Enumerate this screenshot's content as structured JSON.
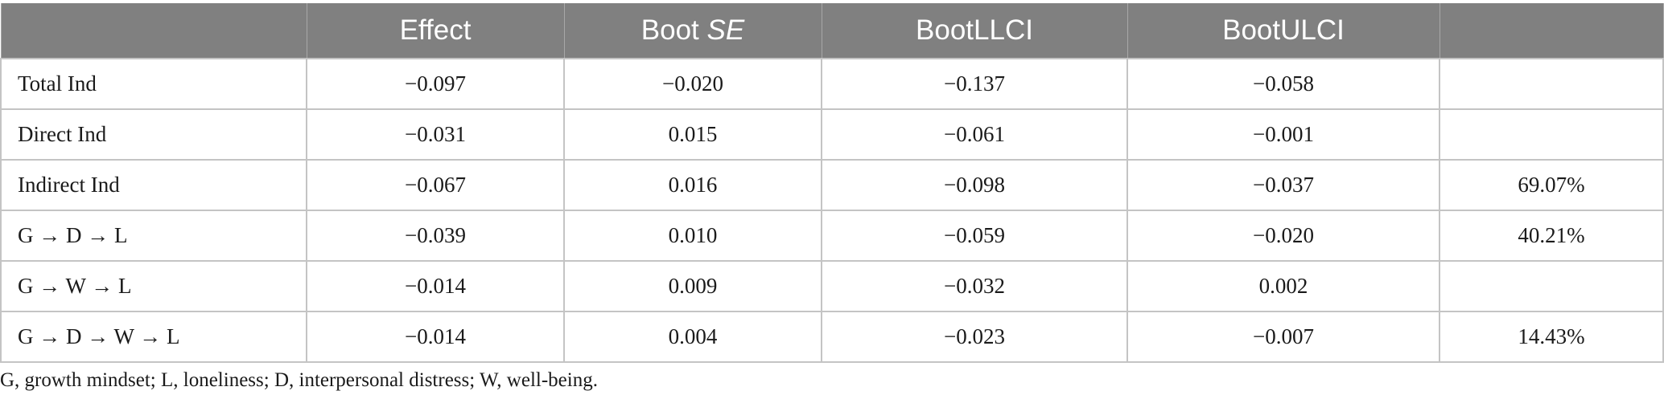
{
  "table": {
    "headers": [
      "",
      "Effect",
      "Boot",
      "SE",
      "BootLLCI",
      "BootULCI",
      ""
    ],
    "rows": [
      {
        "label": "Total Ind",
        "effect": "−0.097",
        "boot_se": "−0.020",
        "bootllci": "−0.137",
        "bootulci": "−0.058",
        "extra": ""
      },
      {
        "label": "Direct Ind",
        "effect": "−0.031",
        "boot_se": "0.015",
        "bootllci": "−0.061",
        "bootulci": "−0.001",
        "extra": ""
      },
      {
        "label": "Indirect Ind",
        "effect": "−0.067",
        "boot_se": "0.016",
        "bootllci": "−0.098",
        "bootulci": "−0.037",
        "extra": "69.07%"
      },
      {
        "label": "G → D → L",
        "effect": "−0.039",
        "boot_se": "0.010",
        "bootllci": "−0.059",
        "bootulci": "−0.020",
        "extra": "40.21%"
      },
      {
        "label": "G → W → L",
        "effect": "−0.014",
        "boot_se": "0.009",
        "bootllci": "−0.032",
        "bootulci": "0.002",
        "extra": ""
      },
      {
        "label": "G → D → W → L",
        "effect": "−0.014",
        "boot_se": "0.004",
        "bootllci": "−0.023",
        "bootulci": "−0.007",
        "extra": "14.43%"
      }
    ]
  },
  "footnote": "G, growth mindset; L, loneliness; D, interpersonal distress; W, well-being.",
  "colors": {
    "header_bg": "#808080",
    "header_text": "#ffffff",
    "grid": "#c4c4c4"
  }
}
